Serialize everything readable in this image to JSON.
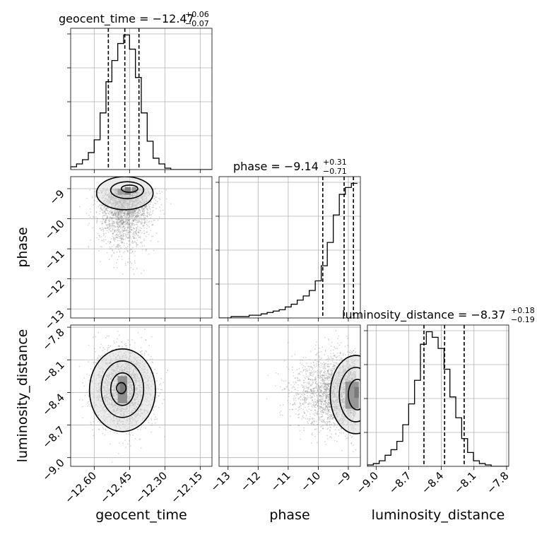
{
  "chart_data": {
    "type": "corner",
    "parameters": [
      "geocent_time",
      "phase",
      "luminosity_distance"
    ],
    "titles": [
      {
        "param": "geocent_time",
        "prefix": "geocent_time = −12.47",
        "plus": "+0.06",
        "minus": "−0.07",
        "median": -12.47,
        "err_plus": 0.06,
        "err_minus": 0.07
      },
      {
        "param": "phase",
        "prefix": "phase = −9.14",
        "plus": "+0.31",
        "minus": "−0.71",
        "median": -9.14,
        "err_plus": 0.31,
        "err_minus": 0.71
      },
      {
        "param": "luminosity_distance",
        "prefix": "luminosity_distance = −8.37",
        "plus": "+0.18",
        "minus": "−0.19",
        "median": -8.37,
        "err_plus": 0.18,
        "err_minus": 0.19
      }
    ],
    "axes": {
      "geocent_time": {
        "range": [
          -12.7,
          -12.1
        ],
        "ticks": [
          -12.6,
          -12.45,
          -12.3,
          -12.15
        ],
        "tick_labels": [
          "−12.60",
          "−12.45",
          "−12.30",
          "−12.15"
        ]
      },
      "phase": {
        "range": [
          -13.3,
          -8.6
        ],
        "ticks": [
          -13,
          -12,
          -11,
          -10,
          -9
        ],
        "tick_labels": [
          "−13",
          "−12",
          "−11",
          "−10",
          "−9"
        ]
      },
      "luminosity_distance": {
        "range": [
          -9.08,
          -7.78
        ],
        "ticks": [
          -9.0,
          -8.7,
          -8.4,
          -8.1,
          -7.8
        ],
        "tick_labels": [
          "−9.0",
          "−8.7",
          "−8.4",
          "−8.1",
          "−7.8"
        ]
      }
    },
    "quantiles": {
      "geocent_time": [
        -12.54,
        -12.47,
        -12.41
      ],
      "phase": [
        -9.85,
        -9.14,
        -8.83
      ],
      "luminosity_distance": [
        -8.56,
        -8.37,
        -8.19
      ]
    },
    "histograms": {
      "geocent_time": {
        "edges_start": -12.7,
        "bin_width": 0.025,
        "counts": [
          2,
          4,
          7,
          12,
          21,
          40,
          62,
          77,
          89,
          95,
          85,
          65,
          40,
          20,
          8,
          4,
          1,
          0,
          0,
          0,
          0,
          0,
          0,
          0
        ]
      },
      "phase": {
        "edges_start": -13.3,
        "bin_width": 0.2,
        "counts": [
          0,
          0,
          1,
          1,
          1,
          2,
          2,
          3,
          4,
          5,
          6,
          8,
          10,
          13,
          16,
          20,
          27,
          38,
          55,
          75,
          90,
          95,
          98
        ]
      },
      "luminosity_distance": {
        "edges_start": -9.08,
        "bin_width": 0.0542,
        "counts": [
          1,
          2,
          4,
          8,
          12,
          18,
          30,
          45,
          62,
          88,
          97,
          93,
          85,
          70,
          50,
          35,
          20,
          10,
          4,
          2,
          1,
          0,
          0,
          0
        ]
      }
    },
    "contours": {
      "phase_vs_geocent_time": {
        "x": "geocent_time",
        "y": "phase",
        "center": [
          -12.45,
          -9.1
        ]
      },
      "luminosity_distance_vs_geocent_time": {
        "x": "geocent_time",
        "y": "luminosity_distance",
        "center": [
          -12.48,
          -8.37
        ]
      },
      "luminosity_distance_vs_phase": {
        "x": "phase",
        "y": "luminosity_distance",
        "center": [
          -8.8,
          -8.42
        ]
      }
    },
    "grid": true,
    "colors": {
      "line": "#000000",
      "grid": "#b0b0b0",
      "points": "#888888"
    }
  }
}
